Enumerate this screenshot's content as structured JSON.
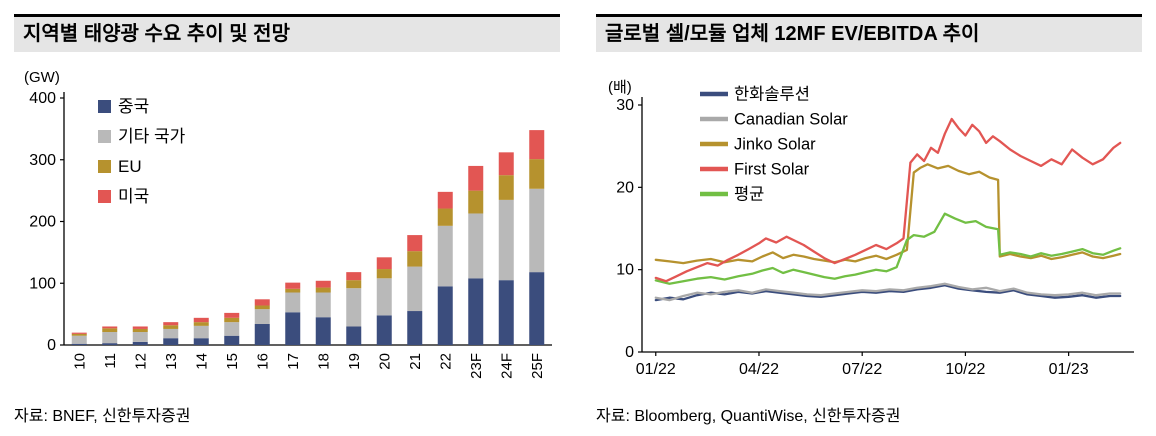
{
  "chart_data": [
    {
      "type": "bar",
      "stacked": true,
      "title": "지역별 태양광 수요 추이 및 전망",
      "unit": "(GW)",
      "source": "자료: BNEF, 신한투자증권",
      "ylim": [
        0,
        400
      ],
      "yticks": [
        0,
        100,
        200,
        300,
        400
      ],
      "categories": [
        "10",
        "11",
        "12",
        "13",
        "14",
        "15",
        "16",
        "17",
        "18",
        "19",
        "20",
        "21",
        "22",
        "23F",
        "24F",
        "25F"
      ],
      "series": [
        {
          "name": "중국",
          "key": "china",
          "color": "#3b4d7d",
          "values": [
            2,
            3,
            5,
            11,
            11,
            15,
            34,
            53,
            45,
            30,
            48,
            55,
            95,
            108,
            105,
            118
          ]
        },
        {
          "name": "기타 국가",
          "key": "other-countries",
          "color": "#b9b9b9",
          "values": [
            13,
            18,
            16,
            15,
            20,
            22,
            24,
            32,
            40,
            62,
            60,
            72,
            98,
            105,
            130,
            135
          ]
        },
        {
          "name": "EU",
          "key": "eu",
          "color": "#b6922e",
          "values": [
            3,
            6,
            5,
            6,
            6,
            7,
            6,
            6,
            8,
            13,
            15,
            25,
            28,
            37,
            40,
            48
          ]
        },
        {
          "name": "미국",
          "key": "us",
          "color": "#e25653",
          "values": [
            2,
            3,
            4,
            5,
            7,
            8,
            10,
            10,
            11,
            13,
            19,
            26,
            27,
            40,
            37,
            47
          ]
        }
      ]
    },
    {
      "type": "line",
      "title": "글로벌 셀/모듈 업체 12MF EV/EBITDA 추이",
      "unit": "(배)",
      "source": "자료: Bloomberg, QuantiWise, 신한투자증권",
      "ylim": [
        0,
        30
      ],
      "yticks": [
        0,
        10,
        20,
        30
      ],
      "xlim": [
        -0.4,
        13.9
      ],
      "xticks": [
        {
          "pos": 0,
          "label": "01/22"
        },
        {
          "pos": 3,
          "label": "04/22"
        },
        {
          "pos": 6,
          "label": "07/22"
        },
        {
          "pos": 9,
          "label": "10/22"
        },
        {
          "pos": 12,
          "label": "01/23"
        }
      ],
      "series": [
        {
          "name": "한화솔루션",
          "key": "hanwha-solution",
          "color": "#3b4d7d",
          "x": [
            0,
            0.4,
            0.8,
            1.2,
            1.6,
            2.0,
            2.4,
            2.8,
            3.2,
            3.6,
            4.0,
            4.4,
            4.8,
            5.2,
            5.6,
            6.0,
            6.4,
            6.8,
            7.2,
            7.6,
            8.0,
            8.4,
            8.8,
            9.2,
            9.6,
            10.0,
            10.4,
            10.8,
            11.2,
            11.6,
            12.0,
            12.4,
            12.8,
            13.2,
            13.5
          ],
          "y": [
            6.3,
            6.6,
            6.4,
            6.9,
            7.2,
            7.0,
            7.3,
            7.1,
            7.4,
            7.2,
            7.0,
            6.8,
            6.7,
            6.9,
            7.1,
            7.3,
            7.2,
            7.4,
            7.3,
            7.6,
            7.8,
            8.1,
            7.7,
            7.5,
            7.3,
            7.2,
            7.5,
            7.0,
            6.8,
            6.6,
            6.7,
            6.9,
            6.6,
            6.8,
            6.8
          ]
        },
        {
          "name": "Canadian Solar",
          "key": "canadian-solar",
          "color": "#a9a9a9",
          "x": [
            0,
            0.4,
            0.8,
            1.2,
            1.6,
            2.0,
            2.4,
            2.8,
            3.2,
            3.6,
            4.0,
            4.4,
            4.8,
            5.2,
            5.6,
            6.0,
            6.4,
            6.8,
            7.2,
            7.6,
            8.0,
            8.4,
            8.8,
            9.2,
            9.6,
            10.0,
            10.4,
            10.8,
            11.2,
            11.6,
            12.0,
            12.4,
            12.8,
            13.2,
            13.5
          ],
          "y": [
            6.6,
            6.3,
            6.8,
            7.2,
            7.0,
            7.3,
            7.5,
            7.2,
            7.6,
            7.4,
            7.2,
            7.0,
            6.9,
            7.1,
            7.3,
            7.5,
            7.4,
            7.6,
            7.5,
            7.8,
            8.0,
            8.3,
            7.9,
            7.6,
            7.8,
            7.4,
            7.7,
            7.2,
            7.0,
            6.9,
            7.0,
            7.2,
            6.9,
            7.1,
            7.1
          ]
        },
        {
          "name": "Jinko Solar",
          "key": "jinko-solar",
          "color": "#b6922e",
          "x": [
            0,
            0.4,
            0.8,
            1.2,
            1.6,
            2.0,
            2.4,
            2.8,
            3.1,
            3.4,
            3.7,
            4.0,
            4.3,
            4.6,
            4.9,
            5.2,
            5.5,
            5.8,
            6.1,
            6.4,
            6.7,
            7.0,
            7.3,
            7.5,
            7.7,
            7.9,
            8.2,
            8.5,
            8.8,
            9.1,
            9.4,
            9.7,
            9.95,
            10.0,
            10.3,
            10.6,
            10.9,
            11.2,
            11.5,
            11.8,
            12.1,
            12.4,
            12.7,
            13.0,
            13.3,
            13.5
          ],
          "y": [
            11.2,
            11.0,
            10.8,
            11.1,
            11.3,
            10.9,
            11.2,
            11.0,
            11.6,
            12.1,
            11.4,
            11.8,
            11.6,
            11.3,
            11.1,
            10.9,
            11.2,
            11.0,
            11.4,
            11.7,
            11.3,
            11.8,
            12.4,
            21.8,
            22.4,
            22.8,
            22.3,
            22.6,
            22.0,
            21.6,
            21.9,
            21.2,
            20.9,
            11.6,
            11.9,
            11.6,
            11.4,
            11.7,
            11.3,
            11.5,
            11.8,
            12.1,
            11.6,
            11.4,
            11.7,
            11.9
          ]
        },
        {
          "name": "First Solar",
          "key": "first-solar",
          "color": "#e25653",
          "x": [
            0,
            0.3,
            0.6,
            0.9,
            1.2,
            1.5,
            1.8,
            2.1,
            2.4,
            2.7,
            3.0,
            3.2,
            3.5,
            3.8,
            4.0,
            4.3,
            4.6,
            4.9,
            5.2,
            5.5,
            5.8,
            6.1,
            6.4,
            6.7,
            7.0,
            7.2,
            7.4,
            7.6,
            7.8,
            8.0,
            8.2,
            8.4,
            8.6,
            8.8,
            9.0,
            9.2,
            9.4,
            9.6,
            9.8,
            10.0,
            10.3,
            10.6,
            10.9,
            11.2,
            11.5,
            11.8,
            12.1,
            12.4,
            12.7,
            13.0,
            13.3,
            13.5
          ],
          "y": [
            9.0,
            8.6,
            9.2,
            9.8,
            10.3,
            10.8,
            10.5,
            11.2,
            11.8,
            12.5,
            13.2,
            13.8,
            13.3,
            14.0,
            13.6,
            13.0,
            12.2,
            11.4,
            10.8,
            11.3,
            11.8,
            12.4,
            13.0,
            12.5,
            13.2,
            13.8,
            23.0,
            24.0,
            23.2,
            24.8,
            24.2,
            26.5,
            28.3,
            27.2,
            26.3,
            27.6,
            26.8,
            25.4,
            26.2,
            25.6,
            24.6,
            23.8,
            23.2,
            22.6,
            23.4,
            22.8,
            24.6,
            23.6,
            22.8,
            23.4,
            24.8,
            25.4
          ]
        },
        {
          "name": "평균",
          "key": "average",
          "color": "#72bf44",
          "x": [
            0,
            0.4,
            0.8,
            1.2,
            1.6,
            2.0,
            2.4,
            2.8,
            3.1,
            3.4,
            3.7,
            4.0,
            4.3,
            4.6,
            4.9,
            5.2,
            5.5,
            5.8,
            6.1,
            6.4,
            6.7,
            7.0,
            7.3,
            7.5,
            7.8,
            8.1,
            8.4,
            8.7,
            9.0,
            9.3,
            9.6,
            9.95,
            10.0,
            10.3,
            10.6,
            10.9,
            11.2,
            11.5,
            11.8,
            12.1,
            12.4,
            12.7,
            13.0,
            13.3,
            13.5
          ],
          "y": [
            8.7,
            8.3,
            8.6,
            8.9,
            9.1,
            8.8,
            9.2,
            9.5,
            9.9,
            10.2,
            9.6,
            10.0,
            9.7,
            9.4,
            9.1,
            8.9,
            9.2,
            9.4,
            9.7,
            10.0,
            9.8,
            10.3,
            13.6,
            14.2,
            14.0,
            14.6,
            16.8,
            16.2,
            15.7,
            15.9,
            15.2,
            14.9,
            11.8,
            12.1,
            11.9,
            11.6,
            12.0,
            11.7,
            11.9,
            12.2,
            12.5,
            12.0,
            11.8,
            12.3,
            12.6
          ]
        }
      ]
    }
  ]
}
